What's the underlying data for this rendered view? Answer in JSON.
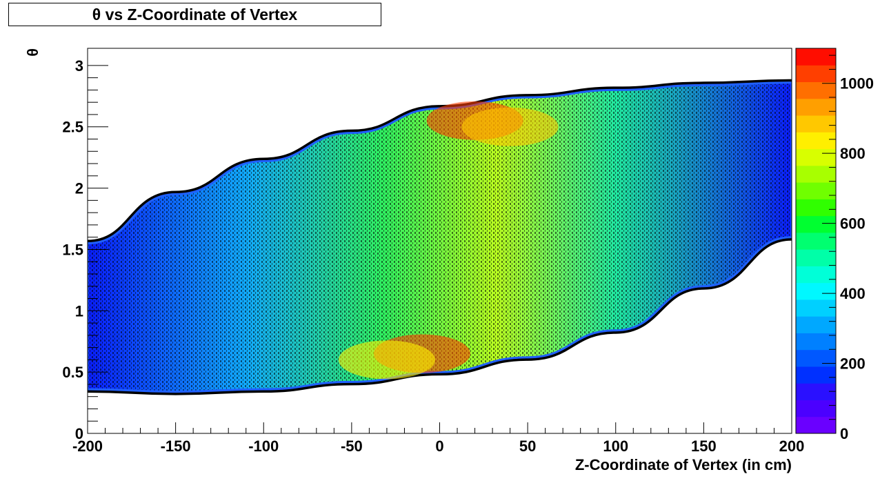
{
  "chart_data": {
    "type": "heatmap",
    "title": "θ vs Z-Coordinate of Vertex",
    "xlabel": "Z-Coordinate of Vertex (in cm)",
    "ylabel": "θ",
    "xlim": [
      -200,
      200
    ],
    "ylim": [
      0,
      3.14
    ],
    "zlim": [
      0,
      1100
    ],
    "x_ticks": [
      "-200",
      "-150",
      "-100",
      "-50",
      "0",
      "50",
      "100",
      "150",
      "200"
    ],
    "y_ticks": [
      "0",
      "0.5",
      "1",
      "1.5",
      "2",
      "2.5",
      "3"
    ],
    "z_ticks": [
      "0",
      "200",
      "400",
      "600",
      "800",
      "1000"
    ],
    "colormap": [
      "#6a00ff",
      "#4b00ff",
      "#2a10ff",
      "#0030ff",
      "#0058ff",
      "#0080ff",
      "#00a8ff",
      "#00d0ff",
      "#00f8ff",
      "#00ffd8",
      "#00ffa8",
      "#00ff70",
      "#00ff30",
      "#30ff00",
      "#70ff00",
      "#a8ff00",
      "#d8ff00",
      "#ffef00",
      "#ffc800",
      "#ff9f00",
      "#ff6f00",
      "#ff3f00",
      "#ff0d00"
    ],
    "band": {
      "description_points_z": [
        -200,
        -150,
        -100,
        -50,
        0,
        50,
        100,
        150,
        200
      ],
      "theta_min": [
        0.36,
        0.34,
        0.36,
        0.42,
        0.5,
        0.62,
        0.84,
        1.2,
        1.6
      ],
      "theta_max": [
        1.55,
        1.95,
        2.22,
        2.45,
        2.65,
        2.74,
        2.8,
        2.84,
        2.86
      ]
    },
    "hotspots": [
      {
        "z": 20,
        "theta": 2.55,
        "value": 1050
      },
      {
        "z": -10,
        "theta": 0.65,
        "value": 1050
      },
      {
        "z": -30,
        "theta": 0.6,
        "value": 850
      },
      {
        "z": 40,
        "theta": 2.5,
        "value": 900
      }
    ]
  }
}
